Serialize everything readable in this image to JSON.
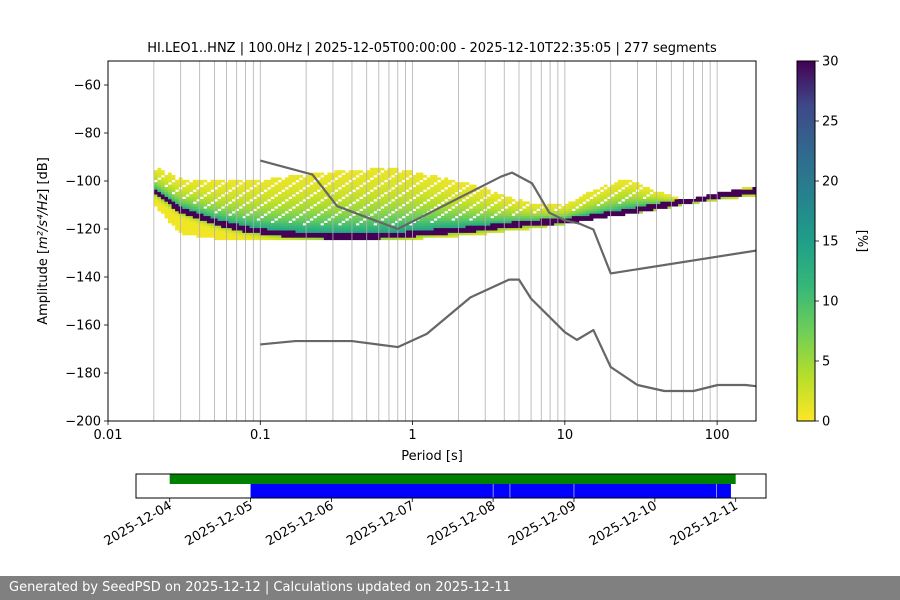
{
  "chart_data": [
    {
      "type": "heatmap",
      "title": "HI.LEO1..HNZ | 100.0Hz | 2025-12-05T00:00:00 - 2025-12-10T22:35:05 | 277 segments",
      "xlabel": "Period [s]",
      "ylabel_prefix": "Amplitude [",
      "ylabel_math": "m²/s⁴/Hz",
      "ylabel_suffix": "] [dB]",
      "x_scale": "log",
      "xlim": [
        0.01,
        180
      ],
      "ylim": [
        -200,
        -50
      ],
      "x_tick_labels": [
        "0.01",
        "0.1",
        "1",
        "10",
        "100"
      ],
      "x_tick_values": [
        0.01,
        0.1,
        1,
        10,
        100
      ],
      "y_tick_values": [
        -60,
        -80,
        -100,
        -120,
        -140,
        -160,
        -180,
        -200
      ],
      "y_tick_labels": [
        "−60",
        "−80",
        "−100",
        "−120",
        "−140",
        "−160",
        "−180",
        "−200"
      ],
      "grid": "vertical lines at each log decade subdivision",
      "colormap": "viridis_r",
      "colorbar": {
        "label": "[%]",
        "range": [
          0,
          30
        ],
        "tick_values": [
          0,
          5,
          10,
          15,
          20,
          25,
          30
        ],
        "tick_labels": [
          "0",
          "5",
          "10",
          "15",
          "20",
          "25",
          "30"
        ]
      },
      "mode_curve": {
        "period": [
          0.02,
          0.03,
          0.05,
          0.08,
          0.12,
          0.2,
          0.3,
          0.5,
          0.8,
          1.2,
          2,
          3,
          4,
          6,
          10,
          15,
          25,
          40,
          60,
          100,
          180
        ],
        "db": [
          -104,
          -112,
          -117,
          -120,
          -121.5,
          -122.5,
          -123,
          -123,
          -122.5,
          -121.5,
          -120.5,
          -119.5,
          -118.5,
          -117.5,
          -116.5,
          -115,
          -113,
          -110.5,
          -108.5,
          -106,
          -104
        ]
      },
      "spread_band": {
        "period": [
          0.02,
          0.03,
          0.05,
          0.08,
          0.12,
          0.2,
          0.3,
          0.5,
          0.8,
          1.2,
          2,
          3,
          4,
          6,
          10,
          15,
          25,
          40,
          60,
          100,
          180
        ],
        "upper_db": [
          -94,
          -99,
          -100,
          -100,
          -99,
          -97,
          -96,
          -95,
          -95,
          -97,
          -100,
          -103,
          -106,
          -109,
          -110,
          -104,
          -99,
          -104,
          -108,
          -105,
          -102
        ],
        "lower_db": [
          -110,
          -122,
          -124,
          -124,
          -124,
          -124,
          -124,
          -124,
          -124,
          -124,
          -123,
          -122,
          -121,
          -120,
          -118,
          -116,
          -114,
          -112,
          -110,
          -108,
          -106
        ]
      },
      "series": [
        {
          "name": "",
          "color": "#666666",
          "period": [
            0.1,
            0.22,
            0.32,
            0.8,
            3.8,
            4.5,
            6.1,
            7.9,
            10,
            12.5,
            15.4,
            20,
            180
          ],
          "db": [
            -91.5,
            -97.3,
            -110.5,
            -120,
            -98.2,
            -96.5,
            -101,
            -113.2,
            -116.4,
            -117.8,
            -120.2,
            -138.5,
            -129
          ]
        },
        {
          "name": "",
          "color": "#666666",
          "period": [
            0.1,
            0.17,
            0.4,
            0.8,
            1.24,
            2.4,
            4.3,
            5.0,
            6.0,
            10,
            12,
            15.4,
            20,
            30,
            45,
            70,
            101,
            154,
            180
          ],
          "db": [
            -168.1,
            -166.7,
            -166.7,
            -169.2,
            -163.7,
            -148.5,
            -141.1,
            -141.1,
            -149,
            -163,
            -166.2,
            -162.1,
            -177.5,
            -185,
            -187.5,
            -187.5,
            -185,
            -185,
            -185.5
          ]
        }
      ]
    },
    {
      "type": "timeline",
      "x_tick_labels": [
        "2025-12-04",
        "2025-12-05",
        "2025-12-06",
        "2025-12-07",
        "2025-12-08",
        "2025-12-09",
        "2025-12-10",
        "2025-12-11"
      ],
      "xlim": [
        "2025-12-03T14:00",
        "2025-12-11T09:00"
      ],
      "green_bar": {
        "color": "#008000",
        "start": "2025-12-04T00:00",
        "end": "2025-12-11T00:00"
      },
      "blue_bar": {
        "color": "#0000ff",
        "segments": [
          [
            "2025-12-05T00:00",
            "2025-12-07T23:55"
          ],
          [
            "2025-12-08T00:05",
            "2025-12-08T04:55"
          ],
          [
            "2025-12-08T05:05",
            "2025-12-08T23:55"
          ],
          [
            "2025-12-09T00:05",
            "2025-12-10T18:10"
          ],
          [
            "2025-12-10T18:20",
            "2025-12-10T22:35"
          ]
        ]
      }
    }
  ],
  "footer": {
    "text": "Generated by SeedPSD on 2025-12-12 | Calculations updated on 2025-12-11"
  }
}
